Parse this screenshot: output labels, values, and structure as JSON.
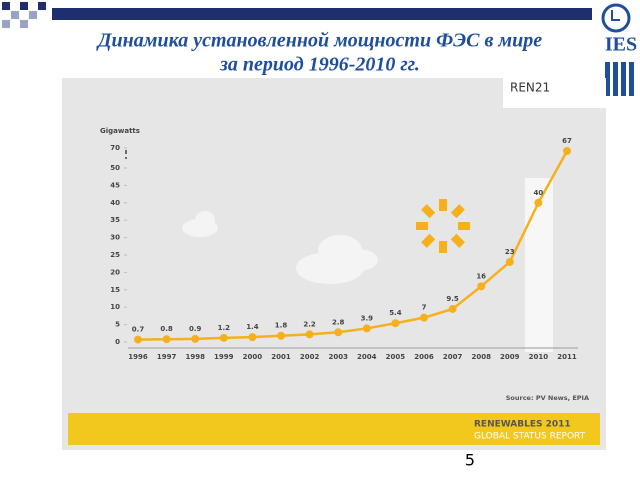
{
  "slide": {
    "title": [
      "Динамика установленной  мощности ФЭС в мире",
      "за период 1996-2010 гг."
    ],
    "logo": "IES",
    "number": 5
  },
  "chart_data": {
    "type": "line",
    "y_label": "Gigawatts",
    "brand": "REN21",
    "source": "Source: PV News, EPIA",
    "report": [
      "RENEWABLES 2011",
      "GLOBAL STATUS REPORT"
    ],
    "categories": [
      "1996",
      "1997",
      "1998",
      "1999",
      "2000",
      "2001",
      "2002",
      "2003",
      "2004",
      "2005",
      "2006",
      "2007",
      "2008",
      "2009",
      "2010",
      "2011"
    ],
    "values": [
      0.7,
      0.8,
      0.9,
      1.2,
      1.4,
      1.8,
      2.2,
      2.8,
      3.9,
      5.4,
      7,
      9.5,
      16,
      23,
      40,
      67
    ],
    "color": "#f5b01c",
    "ylim": [
      0,
      70
    ],
    "yticks": [
      0,
      5,
      10,
      15,
      20,
      25,
      30,
      35,
      40,
      45,
      50,
      70
    ]
  }
}
